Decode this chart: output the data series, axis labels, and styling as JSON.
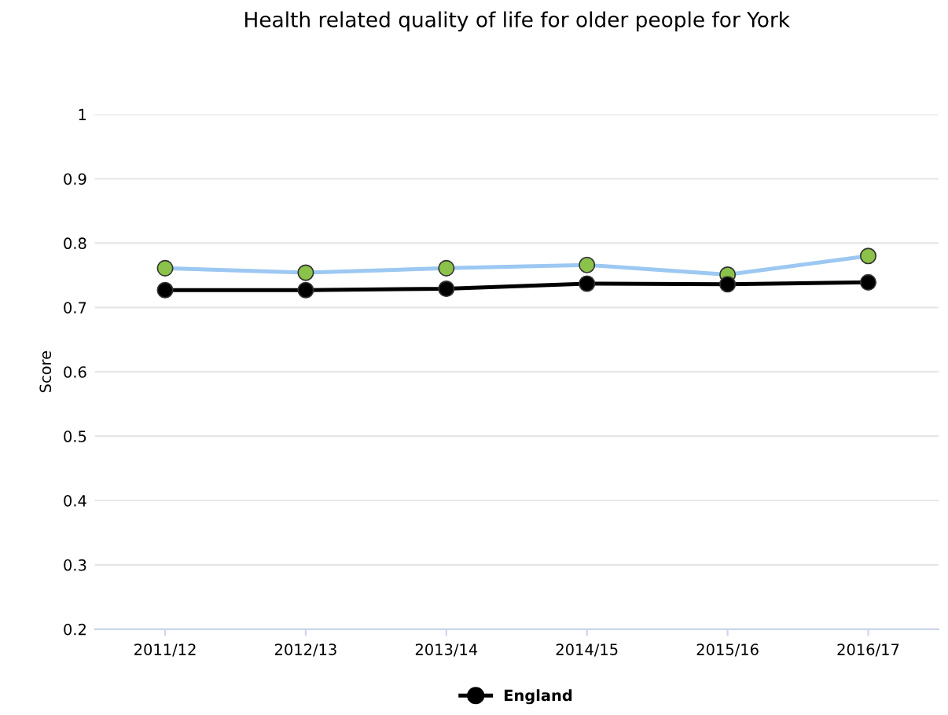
{
  "chart_data": {
    "type": "line",
    "title": "Health related quality of life for older people for York",
    "ylabel": "Score",
    "categories": [
      "2011/12",
      "2012/13",
      "2013/14",
      "2014/15",
      "2015/16",
      "2016/17"
    ],
    "series": [
      {
        "color": "#9cc8f2",
        "colors": [
          "#8bc34a",
          "#8bc34a",
          "#8bc34a",
          "#8bc34a",
          "#8bc34a",
          "#8bc34a"
        ],
        "values": [
          0.761,
          0.754,
          0.761,
          0.766,
          0.751,
          0.78
        ]
      },
      {
        "name": "England",
        "color": "#000000",
        "values": [
          0.727,
          0.727,
          0.729,
          0.737,
          0.736,
          0.739
        ]
      }
    ],
    "ylim": [
      0.2,
      1
    ],
    "yticks": [
      0.2,
      0.3,
      0.4,
      0.5,
      0.6,
      0.7,
      0.8,
      0.9,
      1
    ],
    "grid": "y",
    "legend": "bottom",
    "marker": "circle",
    "line_style": "solid"
  }
}
